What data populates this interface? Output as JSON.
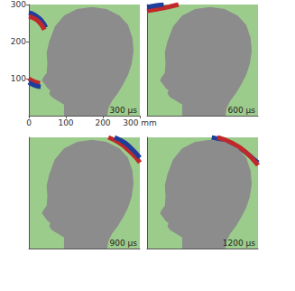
{
  "chart_data": [
    {
      "type": "field_snapshot",
      "title": "300 µs",
      "xlim": [
        0,
        300
      ],
      "ylim": [
        0,
        300
      ],
      "xticks": [
        0,
        100,
        200,
        {
          "value": 300,
          "label": "300 mm"
        }
      ],
      "yticks": [
        100,
        200,
        300
      ],
      "color": "#9ccc8c",
      "head_outline": [
        [
          95,
          0
        ],
        [
          95,
          30
        ],
        [
          75,
          42
        ],
        [
          62,
          50
        ],
        [
          55,
          60
        ],
        [
          58,
          68
        ],
        [
          50,
          75
        ],
        [
          35,
          95
        ],
        [
          40,
          105
        ],
        [
          48,
          115
        ],
        [
          50,
          140
        ],
        [
          48,
          170
        ],
        [
          55,
          200
        ],
        [
          70,
          240
        ],
        [
          95,
          270
        ],
        [
          130,
          288
        ],
        [
          170,
          293
        ],
        [
          210,
          288
        ],
        [
          245,
          270
        ],
        [
          268,
          245
        ],
        [
          280,
          210
        ],
        [
          283,
          175
        ],
        [
          278,
          140
        ],
        [
          268,
          110
        ],
        [
          255,
          85
        ],
        [
          240,
          60
        ],
        [
          225,
          40
        ],
        [
          215,
          20
        ],
        [
          212,
          0
        ]
      ],
      "head_color": "#8c8c8c",
      "wavefronts": [
        {
          "color": "#1f3d9a",
          "points": [
            [
              0,
              278
            ],
            [
              17,
              271
            ],
            [
              33,
              258
            ],
            [
              46,
              238
            ]
          ]
        },
        {
          "color": "#c0282a",
          "points": [
            [
              0,
              268
            ],
            [
              15,
              262
            ],
            [
              30,
              250
            ],
            [
              42,
              232
            ]
          ]
        },
        {
          "color": "#c0282a",
          "points": [
            [
              0,
              100
            ],
            [
              15,
              92
            ],
            [
              30,
              88
            ]
          ]
        },
        {
          "color": "#1f3d9a",
          "points": [
            [
              0,
              90
            ],
            [
              15,
              82
            ],
            [
              32,
              78
            ]
          ]
        }
      ]
    },
    {
      "type": "field_snapshot",
      "title": "600 µs",
      "xlim": [
        0,
        300
      ],
      "ylim": [
        0,
        300
      ],
      "tick_labels": false,
      "color": "#9ccc8c",
      "head_outline": [
        [
          95,
          0
        ],
        [
          95,
          30
        ],
        [
          75,
          42
        ],
        [
          62,
          50
        ],
        [
          55,
          60
        ],
        [
          58,
          68
        ],
        [
          50,
          75
        ],
        [
          35,
          95
        ],
        [
          40,
          105
        ],
        [
          48,
          115
        ],
        [
          50,
          140
        ],
        [
          48,
          170
        ],
        [
          55,
          200
        ],
        [
          70,
          240
        ],
        [
          95,
          270
        ],
        [
          130,
          288
        ],
        [
          170,
          293
        ],
        [
          210,
          288
        ],
        [
          245,
          270
        ],
        [
          268,
          245
        ],
        [
          280,
          210
        ],
        [
          283,
          175
        ],
        [
          278,
          140
        ],
        [
          268,
          110
        ],
        [
          255,
          85
        ],
        [
          240,
          60
        ],
        [
          225,
          40
        ],
        [
          215,
          20
        ],
        [
          212,
          0
        ]
      ],
      "head_color": "#8c8c8c",
      "wavefronts": [
        {
          "color": "#c0282a",
          "points": [
            [
              0,
              283
            ],
            [
              30,
              288
            ],
            [
              60,
              294
            ],
            [
              85,
              300
            ]
          ]
        },
        {
          "color": "#1f3d9a",
          "points": [
            [
              0,
              293
            ],
            [
              30,
              298
            ],
            [
              45,
              300
            ]
          ]
        }
      ]
    },
    {
      "type": "field_snapshot",
      "title": "900 µs",
      "xlim": [
        0,
        300
      ],
      "ylim": [
        0,
        300
      ],
      "tick_labels": false,
      "color": "#9ccc8c",
      "head_outline": [
        [
          95,
          0
        ],
        [
          95,
          30
        ],
        [
          75,
          42
        ],
        [
          62,
          50
        ],
        [
          55,
          60
        ],
        [
          58,
          68
        ],
        [
          50,
          75
        ],
        [
          35,
          95
        ],
        [
          40,
          105
        ],
        [
          48,
          115
        ],
        [
          50,
          140
        ],
        [
          48,
          170
        ],
        [
          55,
          200
        ],
        [
          70,
          240
        ],
        [
          95,
          270
        ],
        [
          130,
          288
        ],
        [
          170,
          293
        ],
        [
          210,
          288
        ],
        [
          245,
          270
        ],
        [
          268,
          245
        ],
        [
          280,
          210
        ],
        [
          283,
          175
        ],
        [
          278,
          140
        ],
        [
          268,
          110
        ],
        [
          255,
          85
        ],
        [
          240,
          60
        ],
        [
          225,
          40
        ],
        [
          215,
          20
        ],
        [
          212,
          0
        ]
      ],
      "head_color": "#8c8c8c",
      "wavefronts": [
        {
          "color": "#c0282a",
          "points": [
            [
              215,
              300
            ],
            [
              245,
              285
            ],
            [
              270,
              265
            ],
            [
              290,
              245
            ],
            [
              300,
              232
            ]
          ]
        },
        {
          "color": "#1f3d9a",
          "points": [
            [
              232,
              300
            ],
            [
              260,
              285
            ],
            [
              285,
              262
            ],
            [
              300,
              245
            ]
          ]
        }
      ]
    },
    {
      "type": "field_snapshot",
      "title": "1200 µs",
      "xlim": [
        0,
        300
      ],
      "ylim": [
        0,
        300
      ],
      "tick_labels": false,
      "color": "#9ccc8c",
      "head_outline": [
        [
          95,
          0
        ],
        [
          95,
          30
        ],
        [
          75,
          42
        ],
        [
          62,
          50
        ],
        [
          55,
          60
        ],
        [
          58,
          68
        ],
        [
          50,
          75
        ],
        [
          35,
          95
        ],
        [
          40,
          105
        ],
        [
          48,
          115
        ],
        [
          50,
          140
        ],
        [
          48,
          170
        ],
        [
          55,
          200
        ],
        [
          70,
          240
        ],
        [
          95,
          270
        ],
        [
          130,
          288
        ],
        [
          170,
          293
        ],
        [
          210,
          288
        ],
        [
          245,
          270
        ],
        [
          268,
          245
        ],
        [
          280,
          210
        ],
        [
          283,
          175
        ],
        [
          278,
          140
        ],
        [
          268,
          110
        ],
        [
          255,
          85
        ],
        [
          240,
          60
        ],
        [
          225,
          40
        ],
        [
          215,
          20
        ],
        [
          212,
          0
        ]
      ],
      "head_color": "#8c8c8c",
      "wavefronts": [
        {
          "color": "#1f3d9a",
          "points": [
            [
              175,
              300
            ],
            [
              215,
              288
            ],
            [
              255,
              268
            ],
            [
              290,
              240
            ],
            [
              300,
              232
            ]
          ]
        },
        {
          "color": "#c0282a",
          "points": [
            [
              190,
              300
            ],
            [
              230,
              285
            ],
            [
              265,
              262
            ],
            [
              300,
              225
            ]
          ]
        }
      ]
    }
  ]
}
